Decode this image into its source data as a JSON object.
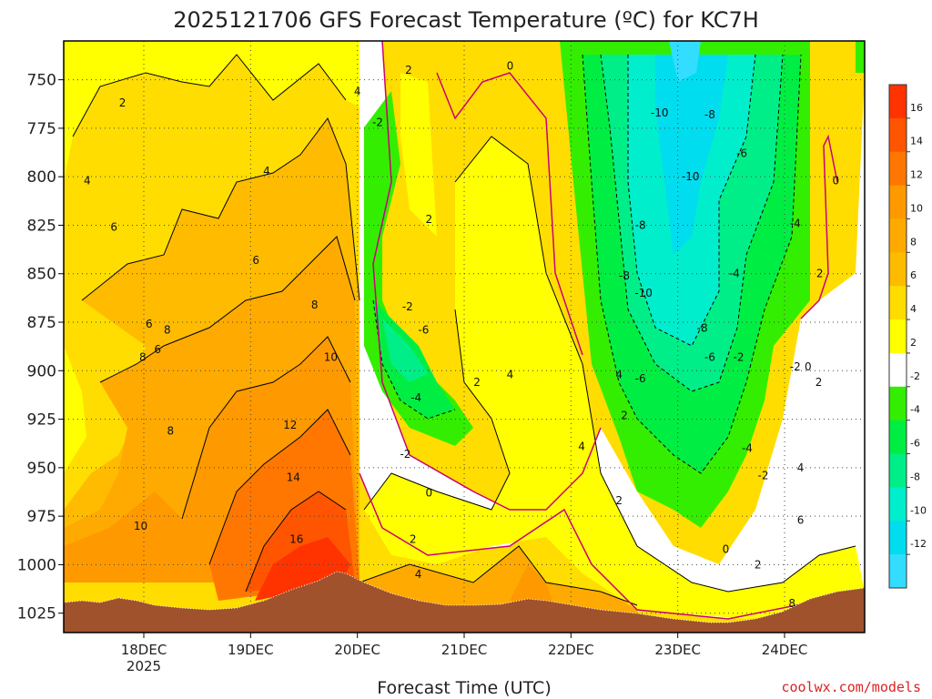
{
  "chart_data": {
    "type": "heatmap",
    "title": "2025121706 GFS Forecast Temperature (ºC) for KC7H",
    "xlabel": "Forecast Time (UTC)",
    "ylabel": "",
    "credit": "coolwx.com/models",
    "x_ticks": [
      {
        "label": "18DEC",
        "sublabel": "2025",
        "t": 18
      },
      {
        "label": "19DEC",
        "sublabel": "",
        "t": 19
      },
      {
        "label": "20DEC",
        "sublabel": "",
        "t": 20
      },
      {
        "label": "21DEC",
        "sublabel": "",
        "t": 21
      },
      {
        "label": "22DEC",
        "sublabel": "",
        "t": 22
      },
      {
        "label": "23DEC",
        "sublabel": "",
        "t": 23
      },
      {
        "label": "24DEC",
        "sublabel": "",
        "t": 24
      }
    ],
    "x_range": [
      17.25,
      24.75
    ],
    "y_ticks": [
      "750",
      "775",
      "800",
      "825",
      "850",
      "875",
      "900",
      "925",
      "950",
      "975",
      "1000",
      "1025"
    ],
    "y_axis": "pressure (hPa), reversed",
    "y_range": [
      730,
      1035
    ],
    "grid": "dotted",
    "colorbar": {
      "labels": [
        "16",
        "14",
        "12",
        "10",
        "8",
        "6",
        "4",
        "2",
        "-2",
        "-4",
        "-6",
        "-8",
        "-10",
        "-12"
      ],
      "colors": [
        "#ff3300",
        "#ff5500",
        "#ff7700",
        "#ff9900",
        "#ffaa00",
        "#ffbb00",
        "#ffdd00",
        "#ffff00",
        "#ffffff",
        "#33ee00",
        "#00ee44",
        "#00ee88",
        "#00eecc",
        "#00ddee",
        "#33ddff"
      ]
    },
    "contour_labels": [
      {
        "text": "2",
        "t": 17.8,
        "p": 762
      },
      {
        "text": "4",
        "t": 17.47,
        "p": 802
      },
      {
        "text": "6",
        "t": 17.72,
        "p": 826
      },
      {
        "text": "6",
        "t": 18.05,
        "p": 876
      },
      {
        "text": "8",
        "t": 17.99,
        "p": 893
      },
      {
        "text": "6",
        "t": 18.13,
        "p": 889
      },
      {
        "text": "8",
        "t": 18.22,
        "p": 879
      },
      {
        "text": "8",
        "t": 18.25,
        "p": 931
      },
      {
        "text": "10",
        "t": 17.97,
        "p": 980
      },
      {
        "text": "4",
        "t": 19.15,
        "p": 797
      },
      {
        "text": "6",
        "t": 19.05,
        "p": 843
      },
      {
        "text": "8",
        "t": 19.6,
        "p": 866
      },
      {
        "text": "10",
        "t": 19.75,
        "p": 893
      },
      {
        "text": "12",
        "t": 19.37,
        "p": 928
      },
      {
        "text": "14",
        "t": 19.4,
        "p": 955
      },
      {
        "text": "16",
        "t": 19.43,
        "p": 987
      },
      {
        "text": "4",
        "t": 20.0,
        "p": 756
      },
      {
        "text": "2",
        "t": 20.48,
        "p": 745
      },
      {
        "text": "-2",
        "t": 20.19,
        "p": 772
      },
      {
        "text": "2",
        "t": 20.67,
        "p": 822
      },
      {
        "text": "-2",
        "t": 20.47,
        "p": 867
      },
      {
        "text": "-6",
        "t": 20.62,
        "p": 879
      },
      {
        "text": "-4",
        "t": 20.55,
        "p": 914
      },
      {
        "text": "-2",
        "t": 20.45,
        "p": 943
      },
      {
        "text": "0",
        "t": 20.67,
        "p": 963
      },
      {
        "text": "2",
        "t": 20.52,
        "p": 987
      },
      {
        "text": "4",
        "t": 20.57,
        "p": 1005
      },
      {
        "text": "0",
        "t": 21.43,
        "p": 743
      },
      {
        "text": "2",
        "t": 21.12,
        "p": 906
      },
      {
        "text": "4",
        "t": 21.43,
        "p": 902
      },
      {
        "text": "4",
        "t": 22.1,
        "p": 939
      },
      {
        "text": "2",
        "t": 22.45,
        "p": 967
      },
      {
        "text": "4",
        "t": 22.45,
        "p": 902
      },
      {
        "text": "2",
        "t": 22.5,
        "p": 923
      },
      {
        "text": "-6",
        "t": 22.65,
        "p": 904
      },
      {
        "text": "-8",
        "t": 22.5,
        "p": 851
      },
      {
        "text": "-8",
        "t": 22.65,
        "p": 825
      },
      {
        "text": "-10",
        "t": 22.68,
        "p": 860
      },
      {
        "text": "-10",
        "t": 22.83,
        "p": 767
      },
      {
        "text": "-8",
        "t": 23.3,
        "p": 768
      },
      {
        "text": "-10",
        "t": 23.12,
        "p": 800
      },
      {
        "text": "-6",
        "t": 23.6,
        "p": 788
      },
      {
        "text": "-8",
        "t": 23.23,
        "p": 878
      },
      {
        "text": "-6",
        "t": 23.3,
        "p": 893
      },
      {
        "text": "-2",
        "t": 23.57,
        "p": 893
      },
      {
        "text": "-4",
        "t": 23.53,
        "p": 850
      },
      {
        "text": "-4",
        "t": 24.1,
        "p": 824
      },
      {
        "text": "-4",
        "t": 23.65,
        "p": 940
      },
      {
        "text": "-2",
        "t": 23.8,
        "p": 954
      },
      {
        "text": "0",
        "t": 24.48,
        "p": 802
      },
      {
        "text": "2",
        "t": 24.33,
        "p": 850
      },
      {
        "text": "-2",
        "t": 24.1,
        "p": 898
      },
      {
        "text": "0",
        "t": 24.22,
        "p": 898
      },
      {
        "text": "2",
        "t": 24.32,
        "p": 906
      },
      {
        "text": "4",
        "t": 24.15,
        "p": 950
      },
      {
        "text": "6",
        "t": 24.15,
        "p": 977
      },
      {
        "text": "2",
        "t": 23.75,
        "p": 1000
      },
      {
        "text": "0",
        "t": 23.45,
        "p": 992
      },
      {
        "text": "8",
        "t": 24.07,
        "p": 1020
      }
    ]
  }
}
